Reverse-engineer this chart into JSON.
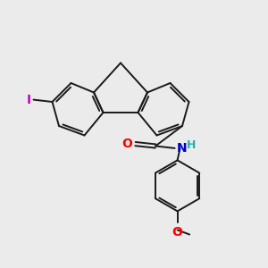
{
  "background_color": "#ebebeb",
  "bond_color": "#1a1a1a",
  "line_width": 1.4,
  "atoms": {
    "I": {
      "color": "#cc00cc",
      "fontsize": 10
    },
    "O_carbonyl": {
      "color": "#ff0000",
      "fontsize": 10
    },
    "N": {
      "color": "#0000cd",
      "fontsize": 10
    },
    "H": {
      "color": "#20b2aa",
      "fontsize": 9
    },
    "O_methoxy": {
      "color": "#ff0000",
      "fontsize": 10
    }
  },
  "figsize": [
    3.0,
    3.0
  ],
  "dpi": 100
}
